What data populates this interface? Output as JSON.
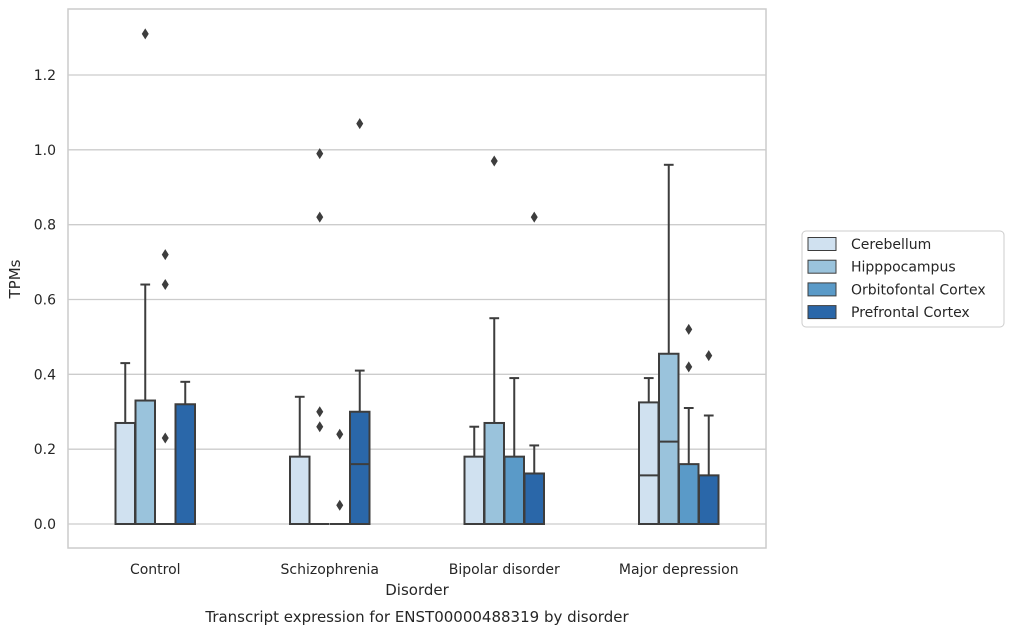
{
  "chart_data": {
    "type": "box",
    "xlabel": "Disorder",
    "ylabel": "TPMs",
    "caption": "Transcript expression for ENST00000488319 by disorder",
    "ylim": [
      -0.065,
      1.38
    ],
    "yticks": [
      0.0,
      0.2,
      0.4,
      0.6,
      0.8,
      1.0,
      1.2
    ],
    "ytick_labels": [
      "0.0",
      "0.2",
      "0.4",
      "0.6",
      "0.8",
      "1.0",
      "1.2"
    ],
    "grid": "horizontal",
    "legend_placement": "right",
    "categories": [
      "Control",
      "Schizophrenia",
      "Bipolar disorder",
      "Major depression"
    ],
    "series": [
      {
        "name": "Cerebellum",
        "color": "#d0e1f0",
        "boxes": [
          {
            "whislo": 0.0,
            "q1": 0.0,
            "med": 0.0,
            "q3": 0.27,
            "whishi": 0.43,
            "fliers": []
          },
          {
            "whislo": 0.0,
            "q1": 0.0,
            "med": 0.0,
            "q3": 0.18,
            "whishi": 0.34,
            "fliers": []
          },
          {
            "whislo": 0.0,
            "q1": 0.0,
            "med": 0.0,
            "q3": 0.18,
            "whishi": 0.26,
            "fliers": []
          },
          {
            "whislo": 0.0,
            "q1": 0.0,
            "med": 0.13,
            "q3": 0.325,
            "whishi": 0.39,
            "fliers": []
          }
        ]
      },
      {
        "name": "Hipppocampus",
        "color": "#9ac3dc",
        "boxes": [
          {
            "whislo": 0.0,
            "q1": 0.0,
            "med": 0.0,
            "q3": 0.33,
            "whishi": 0.64,
            "fliers": [
              1.31
            ]
          },
          {
            "whislo": 0.0,
            "q1": 0.0,
            "med": 0.0,
            "q3": 0.0,
            "whishi": 0.0,
            "fliers": [
              0.3,
              0.26,
              0.82,
              0.99
            ]
          },
          {
            "whislo": 0.0,
            "q1": 0.0,
            "med": 0.0,
            "q3": 0.27,
            "whishi": 0.55,
            "fliers": [
              0.97
            ]
          },
          {
            "whislo": 0.0,
            "q1": 0.0,
            "med": 0.22,
            "q3": 0.455,
            "whishi": 0.96,
            "fliers": []
          }
        ]
      },
      {
        "name": "Orbitofontal Cortex",
        "color": "#5a9ac8",
        "boxes": [
          {
            "whislo": 0.0,
            "q1": 0.0,
            "med": 0.0,
            "q3": 0.0,
            "whishi": 0.0,
            "fliers": [
              0.23,
              0.64,
              0.72
            ]
          },
          {
            "whislo": 0.0,
            "q1": 0.0,
            "med": 0.0,
            "q3": 0.0,
            "whishi": 0.0,
            "fliers": [
              0.05,
              0.24
            ]
          },
          {
            "whislo": 0.0,
            "q1": 0.0,
            "med": 0.0,
            "q3": 0.18,
            "whishi": 0.39,
            "fliers": []
          },
          {
            "whislo": 0.0,
            "q1": 0.0,
            "med": 0.0,
            "q3": 0.16,
            "whishi": 0.31,
            "fliers": [
              0.42,
              0.52
            ]
          }
        ]
      },
      {
        "name": "Prefrontal Cortex",
        "color": "#2a67a9",
        "boxes": [
          {
            "whislo": 0.0,
            "q1": 0.0,
            "med": 0.0,
            "q3": 0.32,
            "whishi": 0.38,
            "fliers": []
          },
          {
            "whislo": 0.0,
            "q1": 0.0,
            "med": 0.16,
            "q3": 0.3,
            "whishi": 0.41,
            "fliers": [
              1.07
            ]
          },
          {
            "whislo": 0.0,
            "q1": 0.0,
            "med": 0.0,
            "q3": 0.135,
            "whishi": 0.21,
            "fliers": [
              0.82
            ]
          },
          {
            "whislo": 0.0,
            "q1": 0.0,
            "med": 0.0,
            "q3": 0.13,
            "whishi": 0.29,
            "fliers": [
              0.45
            ]
          }
        ]
      }
    ]
  }
}
